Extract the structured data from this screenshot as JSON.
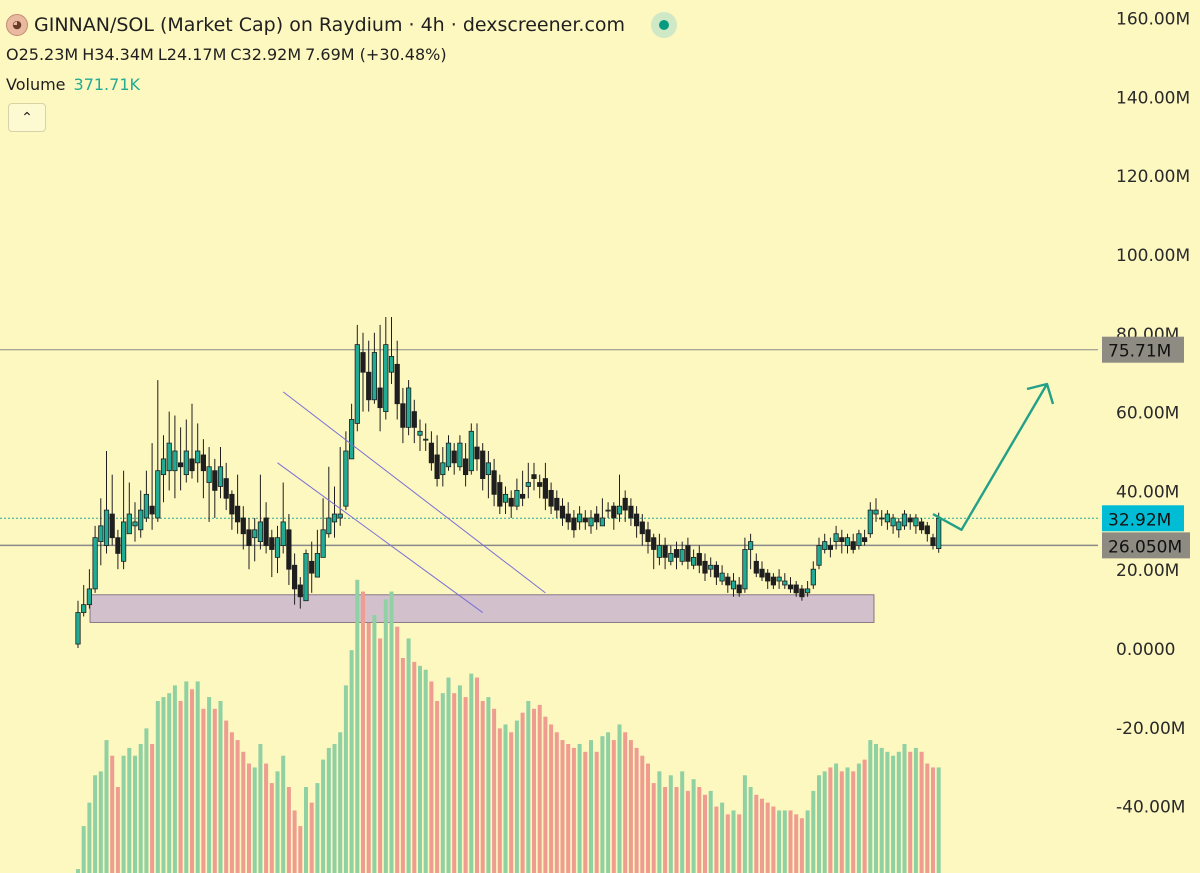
{
  "header": {
    "title": "GINNAN/SOL (Market Cap) on Raydium · 4h · dexscreener.com",
    "ohlc": {
      "o": "O25.23M",
      "h": "H34.34M",
      "l": "L24.17M",
      "c": "C32.92M",
      "change": "7.69M (+30.48%)"
    },
    "volume_label": "Volume",
    "volume_value": "371.71K",
    "collapse_icon": "chevron-up-icon",
    "pair_icon": "token-avatar-icon",
    "status_icon": "live-dot-icon"
  },
  "colors": {
    "background": "#fdf7c0",
    "up": "#22ab94",
    "down": "#1f1f1f",
    "vol_up": "#8fd1a3",
    "vol_down": "#ee9d90",
    "channel": "#7c6fd6",
    "zone": "#c7b3cf",
    "arrow": "#22a088",
    "price_tag": "#00bcd4",
    "level_tag": "#8d8b82"
  },
  "chart_data": {
    "type": "candlestick",
    "y_axis": {
      "ticks": [
        "160.00M",
        "140.00M",
        "120.00M",
        "100.00M",
        "80.00M",
        "60.00M",
        "40.00M",
        "20.00M",
        "0.0000",
        "-20.00M",
        "-40.00M"
      ],
      "range_millions": [
        -52,
        160
      ]
    },
    "levels": [
      {
        "label": "75.71M",
        "value": 75.71,
        "style": "solid"
      },
      {
        "label": "32.92M",
        "value": 32.92,
        "style": "dotted",
        "current": true
      },
      {
        "label": "26.050M",
        "value": 26.05,
        "style": "solid"
      }
    ],
    "support_zone": {
      "from": 6.5,
      "to": 13.5
    },
    "channel": {
      "upper": [
        [
          36,
          65
        ],
        [
          82,
          14
        ]
      ],
      "lower": [
        [
          35,
          47
        ],
        [
          71,
          9
        ]
      ]
    },
    "projection": [
      [
        90,
        34
      ],
      [
        93,
        30
      ],
      [
        102,
        67
      ]
    ],
    "candles": [
      [
        1,
        9,
        12,
        0,
        1
      ],
      [
        9,
        11,
        16,
        8,
        12
      ],
      [
        11,
        15,
        20,
        10,
        18
      ],
      [
        15,
        28,
        31,
        14,
        25
      ],
      [
        27,
        31,
        38,
        21,
        26
      ],
      [
        26,
        35,
        50,
        24,
        34
      ],
      [
        34,
        28,
        44,
        26,
        30
      ],
      [
        28,
        24,
        30,
        20,
        22
      ],
      [
        22,
        32,
        45,
        20,
        30
      ],
      [
        29,
        34,
        42,
        29,
        32
      ],
      [
        31,
        32,
        37,
        27,
        30
      ],
      [
        30,
        35,
        40,
        28,
        33
      ],
      [
        33,
        39,
        45,
        32,
        37
      ],
      [
        36,
        34,
        52,
        30,
        33
      ],
      [
        33,
        45,
        68,
        32,
        44
      ],
      [
        44,
        48,
        54,
        37,
        45
      ],
      [
        45,
        52,
        60,
        40,
        46
      ],
      [
        45,
        50,
        59,
        38,
        48
      ],
      [
        47,
        46,
        56,
        40,
        44
      ],
      [
        44,
        50,
        58,
        42,
        49
      ],
      [
        48,
        45,
        62,
        43,
        47
      ],
      [
        47,
        50,
        57,
        42,
        49
      ],
      [
        49,
        45,
        53,
        38,
        42
      ],
      [
        42,
        46,
        51,
        32,
        45
      ],
      [
        45,
        40,
        48,
        33,
        42
      ],
      [
        41,
        46,
        51,
        38,
        44
      ],
      [
        43,
        38,
        47,
        35,
        39
      ],
      [
        39,
        34,
        40,
        30,
        36
      ],
      [
        36,
        32,
        44,
        29,
        34
      ],
      [
        33,
        29,
        36,
        25,
        31
      ],
      [
        30,
        26,
        33,
        20,
        28
      ],
      [
        28,
        30,
        33,
        22,
        27
      ],
      [
        27,
        32,
        44,
        25,
        33
      ],
      [
        33,
        26,
        37,
        24,
        28
      ],
      [
        28,
        25,
        30,
        18,
        23
      ],
      [
        23,
        28,
        31,
        19,
        26
      ],
      [
        26,
        32,
        42,
        24,
        30
      ],
      [
        30,
        20,
        34,
        16,
        22
      ],
      [
        21,
        15,
        24,
        11,
        16
      ],
      [
        16,
        13,
        18,
        10,
        12
      ],
      [
        12,
        24,
        25,
        12,
        22
      ],
      [
        22,
        19,
        27,
        14,
        18
      ],
      [
        18,
        24,
        30,
        18,
        23
      ],
      [
        23,
        30,
        38,
        23,
        29
      ],
      [
        29,
        33,
        46,
        28,
        32
      ],
      [
        32,
        34,
        41,
        28,
        33
      ],
      [
        33,
        34,
        51,
        31,
        36
      ],
      [
        36,
        50,
        55,
        35,
        48
      ],
      [
        48,
        58,
        62,
        50,
        57
      ],
      [
        57,
        77,
        82,
        55,
        75
      ],
      [
        75,
        70,
        80,
        60,
        72
      ],
      [
        70,
        63,
        78,
        60,
        64
      ],
      [
        63,
        75,
        80,
        62,
        66
      ],
      [
        66,
        61,
        82,
        55,
        60
      ],
      [
        60,
        77,
        84,
        58,
        70
      ],
      [
        70,
        74,
        84,
        67,
        72
      ],
      [
        72,
        62,
        78,
        58,
        63
      ],
      [
        62,
        56,
        66,
        52,
        55
      ],
      [
        56,
        66,
        68,
        54,
        60
      ],
      [
        60,
        56,
        63,
        52,
        54
      ],
      [
        54,
        55,
        58,
        50,
        53
      ],
      [
        53,
        53,
        57,
        50,
        52
      ],
      [
        52,
        47,
        55,
        45,
        49
      ],
      [
        49,
        43,
        54,
        41,
        44
      ],
      [
        44,
        47,
        51,
        41,
        46
      ],
      [
        46,
        52,
        54,
        45,
        50
      ],
      [
        50,
        47,
        52,
        44,
        46
      ],
      [
        46,
        52,
        54,
        45,
        48
      ],
      [
        48,
        44,
        52,
        41,
        45
      ],
      [
        45,
        55,
        57,
        44,
        51
      ],
      [
        51,
        48,
        57,
        45,
        50
      ],
      [
        50,
        43,
        52,
        40,
        44
      ],
      [
        44,
        47,
        50,
        38,
        45
      ],
      [
        45,
        39,
        48,
        36,
        42
      ],
      [
        42,
        36,
        44,
        34,
        37
      ],
      [
        37,
        39,
        41,
        34,
        38
      ],
      [
        38,
        36,
        40,
        33,
        36
      ],
      [
        36,
        40,
        43,
        35,
        39
      ],
      [
        39,
        38,
        45,
        36,
        41
      ],
      [
        41,
        42,
        47,
        38,
        44
      ],
      [
        44,
        43,
        47,
        40,
        42
      ],
      [
        42,
        41,
        44,
        38,
        43
      ],
      [
        43,
        38,
        47,
        35,
        40
      ],
      [
        40,
        36,
        42,
        34,
        38
      ],
      [
        38,
        35,
        40,
        33,
        36
      ],
      [
        36,
        33,
        38,
        31,
        34
      ],
      [
        34,
        32,
        37,
        30,
        33
      ],
      [
        33,
        30,
        35,
        28,
        32
      ],
      [
        32,
        34,
        36,
        30,
        33
      ],
      [
        33,
        32,
        35,
        30,
        31
      ],
      [
        31,
        33,
        35,
        29,
        34
      ],
      [
        34,
        32,
        36,
        30,
        31
      ],
      [
        31,
        33,
        38,
        31,
        35
      ],
      [
        35,
        35,
        37,
        33,
        36
      ],
      [
        36,
        33,
        37,
        30,
        34
      ],
      [
        34,
        36,
        44,
        32,
        38
      ],
      [
        38,
        35,
        40,
        32,
        36
      ],
      [
        36,
        33,
        38,
        31,
        34
      ],
      [
        34,
        31,
        36,
        28,
        32
      ],
      [
        32,
        29,
        34,
        26,
        30
      ],
      [
        30,
        27,
        32,
        24,
        28
      ],
      [
        28,
        25,
        29,
        20,
        23
      ],
      [
        23,
        26,
        29,
        21,
        26
      ],
      [
        26,
        23,
        28,
        20,
        22
      ],
      [
        22,
        24,
        26,
        21,
        25
      ],
      [
        25,
        23,
        27,
        20,
        22
      ],
      [
        22,
        25,
        27,
        21,
        26
      ],
      [
        26,
        22,
        28,
        20,
        21
      ],
      [
        21,
        23,
        25,
        20,
        24
      ],
      [
        24,
        21,
        26,
        19,
        22
      ],
      [
        22,
        19,
        24,
        17,
        20
      ],
      [
        20,
        21,
        23,
        18,
        21
      ],
      [
        21,
        18,
        22,
        16,
        17
      ],
      [
        17,
        19,
        21,
        16,
        18
      ],
      [
        18,
        16,
        19,
        14,
        15
      ],
      [
        15,
        17,
        19,
        13,
        16
      ],
      [
        16,
        14,
        18,
        13,
        15
      ],
      [
        15,
        25,
        28,
        14,
        25
      ],
      [
        25,
        27,
        29,
        20,
        22
      ],
      [
        22,
        19,
        24,
        18,
        20
      ],
      [
        20,
        18,
        22,
        17,
        19
      ],
      [
        19,
        17,
        20,
        15,
        18
      ],
      [
        18,
        16,
        19,
        15,
        17
      ],
      [
        17,
        18,
        20,
        15,
        16
      ],
      [
        16,
        17,
        19,
        15,
        16
      ],
      [
        16,
        15,
        18,
        14,
        16
      ],
      [
        16,
        14,
        17,
        13,
        15
      ],
      [
        15,
        13,
        16,
        12,
        14
      ],
      [
        14,
        15,
        17,
        13,
        16
      ],
      [
        16,
        20,
        22,
        15,
        21
      ],
      [
        21,
        26,
        28,
        20,
        25
      ],
      [
        25,
        27,
        29,
        24,
        26
      ],
      [
        26,
        25,
        28,
        23,
        27
      ],
      [
        27,
        29,
        31,
        25,
        28
      ],
      [
        28,
        27,
        30,
        24,
        26
      ],
      [
        26,
        28,
        29,
        24,
        27
      ],
      [
        27,
        25,
        29,
        24,
        26
      ],
      [
        26,
        29,
        30,
        25,
        28
      ],
      [
        28,
        27,
        30,
        26,
        29
      ],
      [
        29,
        35,
        37,
        28,
        34
      ],
      [
        34,
        35,
        38,
        32,
        33
      ],
      [
        33,
        33,
        35,
        31,
        32
      ],
      [
        32,
        34,
        35,
        30,
        31
      ],
      [
        31,
        33,
        34,
        29,
        30
      ],
      [
        30,
        32,
        33,
        28,
        31
      ],
      [
        31,
        34,
        35,
        30,
        33
      ],
      [
        33,
        32,
        34,
        30,
        31
      ],
      [
        31,
        33,
        34,
        29,
        32
      ],
      [
        32,
        30,
        33,
        29,
        31
      ],
      [
        31,
        29,
        32,
        27,
        28
      ],
      [
        28,
        26,
        29,
        25,
        27
      ],
      [
        25.23,
        32.92,
        34.34,
        24.17,
        27
      ]
    ],
    "volume_max": 55
  }
}
